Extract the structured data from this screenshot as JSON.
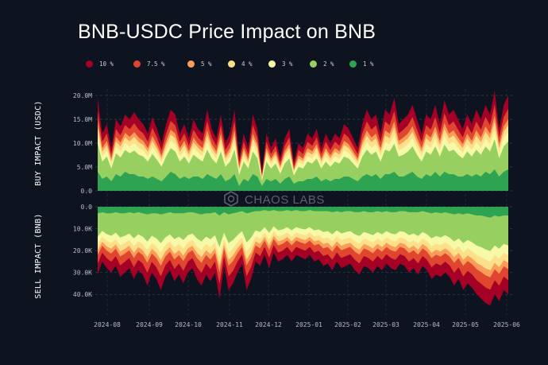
{
  "chart_data": {
    "type": "area",
    "title": "BNB-USDC Price Impact on BNB",
    "watermark": "CHAOS LABS",
    "x_tick_labels": [
      "2024-08",
      "2024-09",
      "2024-10",
      "2024-11",
      "2024-12",
      "2025-01",
      "2025-02",
      "2025-03",
      "2025-04",
      "2025-05",
      "2025-06"
    ],
    "legend": [
      {
        "label": "10 %",
        "color": "#a50026"
      },
      {
        "label": "7.5 %",
        "color": "#e0452f"
      },
      {
        "label": "5 %",
        "color": "#fb9d59"
      },
      {
        "label": "4 %",
        "color": "#fee08b"
      },
      {
        "label": "3 %",
        "color": "#f5f9a8"
      },
      {
        "label": "2 %",
        "color": "#97cf60"
      },
      {
        "label": "1 %",
        "color": "#2ea453"
      }
    ],
    "buy_panel": {
      "ylabel": "BUY IMPACT (USDC)",
      "ylim": [
        0,
        20000000
      ],
      "tick_values": [
        0,
        5000000,
        10000000,
        15000000,
        20000000
      ],
      "tick_labels": [
        "0.0",
        "5.0M",
        "10.0M",
        "15.0M",
        "20.0M"
      ],
      "series_10pct_approx": [
        19.5,
        12,
        14,
        9,
        15,
        13.5,
        16,
        15,
        16.5,
        15,
        14,
        12,
        15.5,
        13,
        10,
        14,
        17,
        16,
        12,
        14,
        11,
        15,
        13,
        12,
        17,
        13,
        11,
        16,
        10,
        12,
        17,
        7,
        12,
        9,
        16,
        13,
        4,
        12,
        9,
        11,
        7,
        11,
        13,
        6,
        10,
        9,
        12,
        11,
        13,
        9,
        12,
        10,
        12,
        11,
        14,
        13,
        11,
        9,
        14,
        17,
        15,
        16,
        12,
        17,
        16,
        19.5,
        14,
        15,
        16,
        18,
        15,
        12,
        16,
        15,
        18,
        14,
        19,
        16,
        17,
        15,
        13,
        16,
        14,
        17,
        15,
        18,
        16,
        21,
        13,
        18,
        20
      ],
      "series_1pct_approx": [
        4,
        2.5,
        3,
        2,
        3.5,
        3,
        4,
        3.5,
        3.5,
        3,
        3,
        2.5,
        3,
        2.5,
        2,
        3,
        4,
        3.5,
        2.5,
        3,
        2.5,
        3,
        3,
        2.5,
        3.5,
        3,
        2.5,
        3.5,
        2,
        2.5,
        3.5,
        1,
        2.5,
        2,
        3.5,
        3,
        1,
        2.5,
        2,
        2.5,
        1.5,
        2.5,
        3,
        1.5,
        2,
        2,
        2.5,
        2.5,
        3,
        2,
        2.5,
        2,
        2.5,
        2.5,
        3,
        3,
        2.5,
        2,
        3,
        3.5,
        3,
        3.5,
        2.5,
        3.5,
        3.5,
        4,
        3,
        3,
        3.5,
        4,
        3,
        2.5,
        3.5,
        3,
        4,
        3,
        4,
        3.5,
        3.5,
        3,
        3,
        3.5,
        3,
        3.5,
        3,
        4,
        3.5,
        4.5,
        3,
        4,
        4.5
      ]
    },
    "sell_panel": {
      "ylabel": "SELL IMPACT (BNB)",
      "ylim": [
        0,
        45000
      ],
      "tick_values": [
        0,
        10000,
        20000,
        30000,
        40000
      ],
      "tick_labels": [
        "0.0",
        "10.0K",
        "20.0K",
        "30.0K",
        "40.0K"
      ],
      "series_10pct_approx": [
        31,
        25,
        28,
        30,
        27,
        32,
        30,
        28,
        33,
        29,
        31,
        36,
        30,
        33,
        38,
        32,
        29,
        34,
        31,
        35,
        30,
        28,
        33,
        36,
        31,
        34,
        30,
        42,
        27,
        38,
        35,
        30,
        26,
        38,
        33,
        25,
        27,
        22,
        28,
        21,
        25,
        24,
        22,
        25,
        22,
        23,
        24,
        22,
        25,
        24,
        27,
        26,
        29,
        25,
        28,
        27,
        26,
        29,
        31,
        27,
        28,
        30,
        27,
        29,
        26,
        28,
        29,
        26,
        27,
        30,
        28,
        31,
        27,
        29,
        33,
        31,
        32,
        30,
        32,
        36,
        33,
        38,
        35,
        37,
        40,
        42,
        44,
        45,
        40,
        43,
        38,
        40
      ],
      "series_1pct_approx": [
        3,
        2.5,
        3,
        3,
        2.5,
        3,
        3,
        2.5,
        3,
        2.5,
        3,
        3.5,
        3,
        3,
        3.5,
        3,
        2.5,
        3,
        3,
        3,
        2.5,
        2.5,
        3,
        3.5,
        3,
        3,
        2.5,
        4,
        2.5,
        3.5,
        3,
        2.5,
        2,
        3,
        2.5,
        2,
        2,
        1.5,
        2,
        1.5,
        2,
        2,
        1.5,
        2,
        1.5,
        2,
        2,
        1.5,
        2,
        2,
        2,
        2,
        2.5,
        2,
        2.5,
        2,
        2,
        2.5,
        2.5,
        2,
        2.5,
        2.5,
        2,
        2.5,
        2,
        2.5,
        2.5,
        2,
        2,
        2.5,
        2.5,
        2.5,
        2,
        2.5,
        3,
        2.5,
        3,
        2.5,
        3,
        3.5,
        3,
        3.5,
        3,
        3.5,
        4,
        4,
        4.5,
        5,
        4,
        4.5,
        4,
        4
      ]
    },
    "layer_multipliers": [
      1.0,
      0.82,
      0.68,
      0.6,
      0.5,
      0.38,
      0.2
    ],
    "grid": "vertical dashed at month ticks, horizontal dashed at y ticks"
  }
}
